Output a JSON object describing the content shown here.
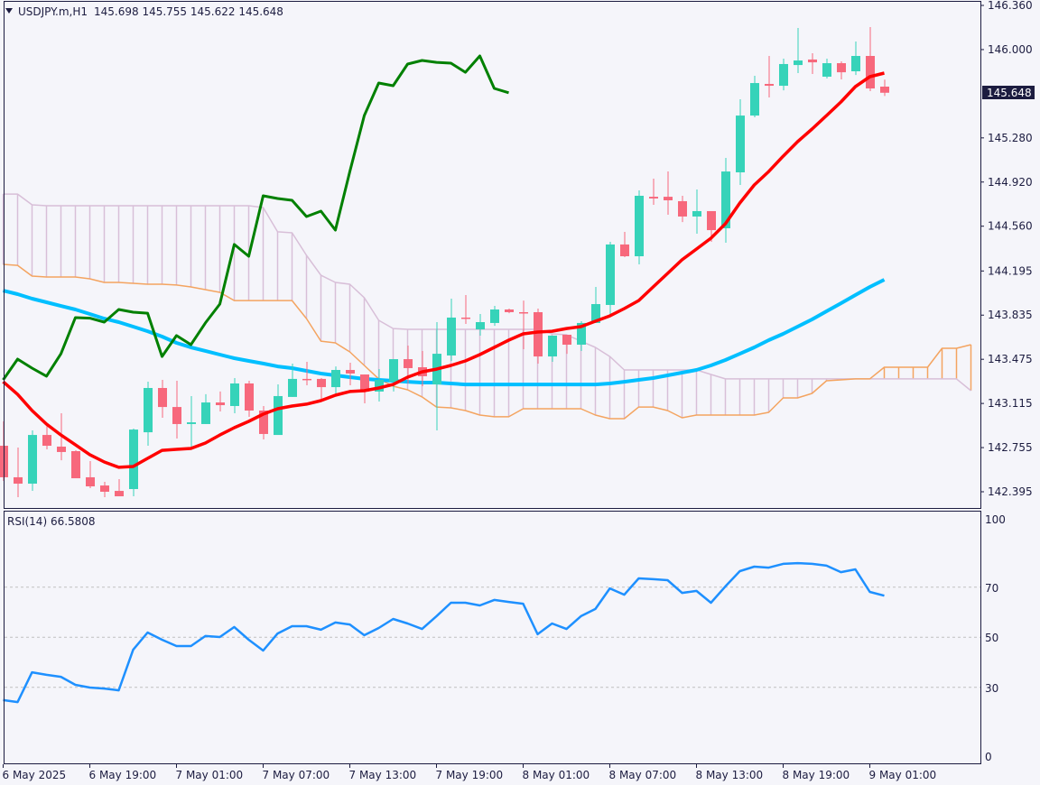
{
  "header": {
    "symbol": "USDJPY.m,H1",
    "ohlc_text": "145.698 145.755 145.622 145.648",
    "menu_icon": "triangle-down-icon"
  },
  "rsi_header": {
    "label": "RSI(14) 66.5808"
  },
  "colors": {
    "background": "#f5f5fa",
    "frame": "#1c1c40",
    "bull": "#36d3b9",
    "bear": "#f7687c",
    "ma_fast": "#ff0000",
    "ma_slow": "#00bfff",
    "chikou": "#008000",
    "senkou_a": "#d8bfd8",
    "senkou_b": "#f4a460",
    "rsi": "#1e90ff",
    "level": "#c0c0c0",
    "price_tag_bg": "#1c1c40",
    "price_tag_fg": "#ffffff"
  },
  "chart_data": [
    {
      "type": "candlestick",
      "title": "USDJPY.m,H1",
      "price_range": [
        142.395,
        146.36
      ],
      "y_tick_labels": [
        "146.360",
        "146.000",
        "145.280",
        "144.920",
        "144.560",
        "144.195",
        "143.835",
        "143.475",
        "143.115",
        "142.755",
        "142.395"
      ],
      "current_price_label": "145.648",
      "x_tick_labels": [
        {
          "bar": 0,
          "label": "6 May 2025"
        },
        {
          "bar": 6,
          "label": "6 May 19:00"
        },
        {
          "bar": 12,
          "label": "7 May 01:00"
        },
        {
          "bar": 18,
          "label": "7 May 07:00"
        },
        {
          "bar": 24,
          "label": "7 May 13:00"
        },
        {
          "bar": 30,
          "label": "7 May 19:00"
        },
        {
          "bar": 36,
          "label": "8 May 01:00"
        },
        {
          "bar": 42,
          "label": "8 May 07:00"
        },
        {
          "bar": 48,
          "label": "8 May 13:00"
        },
        {
          "bar": 54,
          "label": "8 May 19:00"
        },
        {
          "bar": 60,
          "label": "9 May 01:00"
        }
      ],
      "candles_ohlc": [
        [
          142.77,
          142.969,
          142.483,
          142.513
        ],
        [
          142.513,
          142.755,
          142.351,
          142.461
        ],
        [
          142.461,
          142.895,
          142.402,
          142.858
        ],
        [
          142.858,
          142.947,
          142.741,
          142.77
        ],
        [
          142.763,
          143.035,
          142.652,
          142.719
        ],
        [
          142.726,
          142.733,
          142.505,
          142.505
        ],
        [
          142.513,
          142.645,
          142.424,
          142.439
        ],
        [
          142.446,
          142.476,
          142.351,
          142.395
        ],
        [
          142.402,
          142.498,
          142.358,
          142.358
        ],
        [
          142.417,
          142.91,
          142.358,
          142.902
        ],
        [
          142.88,
          143.292,
          142.77,
          143.241
        ],
        [
          143.241,
          143.307,
          142.998,
          143.086
        ],
        [
          143.086,
          143.3,
          142.829,
          142.947
        ],
        [
          142.947,
          143.175,
          142.741,
          142.961
        ],
        [
          142.947,
          143.19,
          142.947,
          143.123
        ],
        [
          143.123,
          143.212,
          143.05,
          143.101
        ],
        [
          143.094,
          143.322,
          143.035,
          143.278
        ],
        [
          143.278,
          143.3,
          143.006,
          143.057
        ],
        [
          143.057,
          143.094,
          142.822,
          142.866
        ],
        [
          142.858,
          143.27,
          142.858,
          143.175
        ],
        [
          143.168,
          143.44,
          143.168,
          143.315
        ],
        [
          143.315,
          143.454,
          143.263,
          143.31
        ],
        [
          143.315,
          143.322,
          143.153,
          143.248
        ],
        [
          143.248,
          143.417,
          143.197,
          143.388
        ],
        [
          143.388,
          143.447,
          143.263,
          143.359
        ],
        [
          143.351,
          143.351,
          143.116,
          143.212
        ],
        [
          143.212,
          143.395,
          143.131,
          143.307
        ],
        [
          143.292,
          143.476,
          143.212,
          143.476
        ],
        [
          143.476,
          143.587,
          143.278,
          143.403
        ],
        [
          143.41,
          143.543,
          143.256,
          143.337
        ],
        [
          143.27,
          143.778,
          142.895,
          143.52
        ],
        [
          143.506,
          143.969,
          143.462,
          143.815
        ],
        [
          143.815,
          143.999,
          143.763,
          143.81
        ],
        [
          143.719,
          143.844,
          143.668,
          143.778
        ],
        [
          143.771,
          143.91,
          143.748,
          143.881
        ],
        [
          143.881,
          143.888,
          143.851,
          143.859
        ],
        [
          143.859,
          143.954,
          143.557,
          143.851
        ],
        [
          143.859,
          143.888,
          143.44,
          143.498
        ],
        [
          143.498,
          143.668,
          143.454,
          143.668
        ],
        [
          143.675,
          143.675,
          143.52,
          143.594
        ],
        [
          143.594,
          143.785,
          143.543,
          143.771
        ],
        [
          143.771,
          144.065,
          143.771,
          143.925
        ],
        [
          143.918,
          144.433,
          143.829,
          144.411
        ],
        [
          144.411,
          144.514,
          144.308,
          144.315
        ],
        [
          144.315,
          144.852,
          144.249,
          144.808
        ],
        [
          144.8,
          144.948,
          144.734,
          144.786
        ],
        [
          144.8,
          145.006,
          144.653,
          144.771
        ],
        [
          144.764,
          144.808,
          144.594,
          144.639
        ],
        [
          144.639,
          144.859,
          144.499,
          144.683
        ],
        [
          144.683,
          144.683,
          144.433,
          144.528
        ],
        [
          144.543,
          145.117,
          144.425,
          145.006
        ],
        [
          144.999,
          145.595,
          144.896,
          145.462
        ],
        [
          145.462,
          145.786,
          145.448,
          145.727
        ],
        [
          145.72,
          145.948,
          145.61,
          145.705
        ],
        [
          145.705,
          145.926,
          145.668,
          145.882
        ],
        [
          145.874,
          146.176,
          145.808,
          145.911
        ],
        [
          145.919,
          145.97,
          145.801,
          145.896
        ],
        [
          145.779,
          145.926,
          145.764,
          145.889
        ],
        [
          145.889,
          145.904,
          145.757,
          145.815
        ],
        [
          145.823,
          146.066,
          145.793,
          145.948
        ],
        [
          145.948,
          146.183,
          145.661,
          145.683
        ],
        [
          145.698,
          145.755,
          145.622,
          145.648
        ]
      ],
      "ma_fast": [
        143.292,
        143.189,
        143.057,
        142.947,
        142.858,
        142.778,
        142.697,
        142.638,
        142.594,
        142.601,
        142.667,
        142.733,
        142.741,
        142.748,
        142.792,
        142.858,
        142.917,
        142.969,
        143.028,
        143.072,
        143.094,
        143.109,
        143.138,
        143.182,
        143.212,
        143.219,
        143.241,
        143.27,
        143.329,
        143.373,
        143.395,
        143.425,
        143.462,
        143.513,
        143.572,
        143.631,
        143.682,
        143.697,
        143.704,
        143.726,
        143.741,
        143.785,
        143.829,
        143.888,
        143.954,
        144.065,
        144.175,
        144.286,
        144.374,
        144.462,
        144.58,
        144.749,
        144.896,
        145.006,
        145.131,
        145.249,
        145.352,
        145.462,
        145.573,
        145.698,
        145.779,
        145.808
      ],
      "ma_slow": [
        144.035,
        144.006,
        143.969,
        143.94,
        143.91,
        143.881,
        143.844,
        143.807,
        143.778,
        143.741,
        143.704,
        143.66,
        143.609,
        143.572,
        143.543,
        143.513,
        143.484,
        143.462,
        143.44,
        143.417,
        143.403,
        143.381,
        143.359,
        143.344,
        143.329,
        143.315,
        143.307,
        143.3,
        143.292,
        143.285,
        143.285,
        143.278,
        143.27,
        143.27,
        143.27,
        143.27,
        143.27,
        143.27,
        143.27,
        143.27,
        143.27,
        143.27,
        143.278,
        143.292,
        143.307,
        143.322,
        143.344,
        143.366,
        143.388,
        143.425,
        143.469,
        143.52,
        143.572,
        143.631,
        143.682,
        143.741,
        143.8,
        143.866,
        143.932,
        143.999,
        144.065,
        144.124
      ],
      "chikou_shift_bars": 26,
      "senkou_a": [
        144.822,
        144.822,
        144.734,
        144.727,
        144.727,
        144.727,
        144.727,
        144.727,
        144.727,
        144.727,
        144.727,
        144.727,
        144.727,
        144.727,
        144.727,
        144.727,
        144.727,
        144.727,
        144.712,
        144.514,
        144.506,
        144.322,
        144.16,
        144.102,
        144.087,
        143.977,
        143.793,
        143.726,
        143.719,
        143.719,
        143.719,
        143.719,
        143.719,
        143.719,
        143.719,
        143.719,
        143.719,
        143.719,
        143.682,
        143.675,
        143.623,
        143.572,
        143.498,
        143.388,
        143.388,
        143.388,
        143.388,
        143.388,
        143.388,
        143.351,
        143.315,
        143.315,
        143.315,
        143.315,
        143.315,
        143.315,
        143.315,
        143.315,
        143.315,
        143.315,
        143.315,
        143.315,
        143.315,
        143.315,
        143.315,
        143.315,
        143.315,
        143.219
      ],
      "senkou_b": [
        144.249,
        144.241,
        144.153,
        144.146,
        144.146,
        144.146,
        144.131,
        144.102,
        144.102,
        144.094,
        144.087,
        144.087,
        144.08,
        144.065,
        144.043,
        144.021,
        143.954,
        143.954,
        143.954,
        143.954,
        143.954,
        143.807,
        143.623,
        143.609,
        143.535,
        143.425,
        143.315,
        143.256,
        143.226,
        143.168,
        143.086,
        143.079,
        143.057,
        143.02,
        143.006,
        143.006,
        143.072,
        143.072,
        143.072,
        143.072,
        143.072,
        143.02,
        142.991,
        142.991,
        143.086,
        143.086,
        143.057,
        142.998,
        143.02,
        143.02,
        143.02,
        143.02,
        143.02,
        143.042,
        143.16,
        143.16,
        143.197,
        143.3,
        143.307,
        143.315,
        143.315,
        143.41,
        143.41,
        143.41,
        143.41,
        143.565,
        143.565,
        143.594
      ]
    },
    {
      "type": "line",
      "title": "RSI(14) 66.5808",
      "ylim": [
        0,
        100
      ],
      "y_tick_labels": [
        "100",
        "70",
        "50",
        "30",
        "0"
      ],
      "levels": [
        70,
        50,
        30
      ],
      "values": [
        24.9,
        24.1,
        36.0,
        35.0,
        34.2,
        31.0,
        29.9,
        29.5,
        28.8,
        45.0,
        51.9,
        49.0,
        46.5,
        46.5,
        50.5,
        50.1,
        54.1,
        49.0,
        44.7,
        51.5,
        54.4,
        54.4,
        53.0,
        55.9,
        55.1,
        50.8,
        53.7,
        57.3,
        55.5,
        53.3,
        58.4,
        63.8,
        63.8,
        62.7,
        64.9,
        64.1,
        63.4,
        51.2,
        55.5,
        53.3,
        58.4,
        61.3,
        69.5,
        67.0,
        73.5,
        73.2,
        72.8,
        67.7,
        68.5,
        63.8,
        70.3,
        76.4,
        78.2,
        77.8,
        79.3,
        79.6,
        79.3,
        78.6,
        76.0,
        77.1,
        68.1,
        66.58
      ]
    }
  ]
}
